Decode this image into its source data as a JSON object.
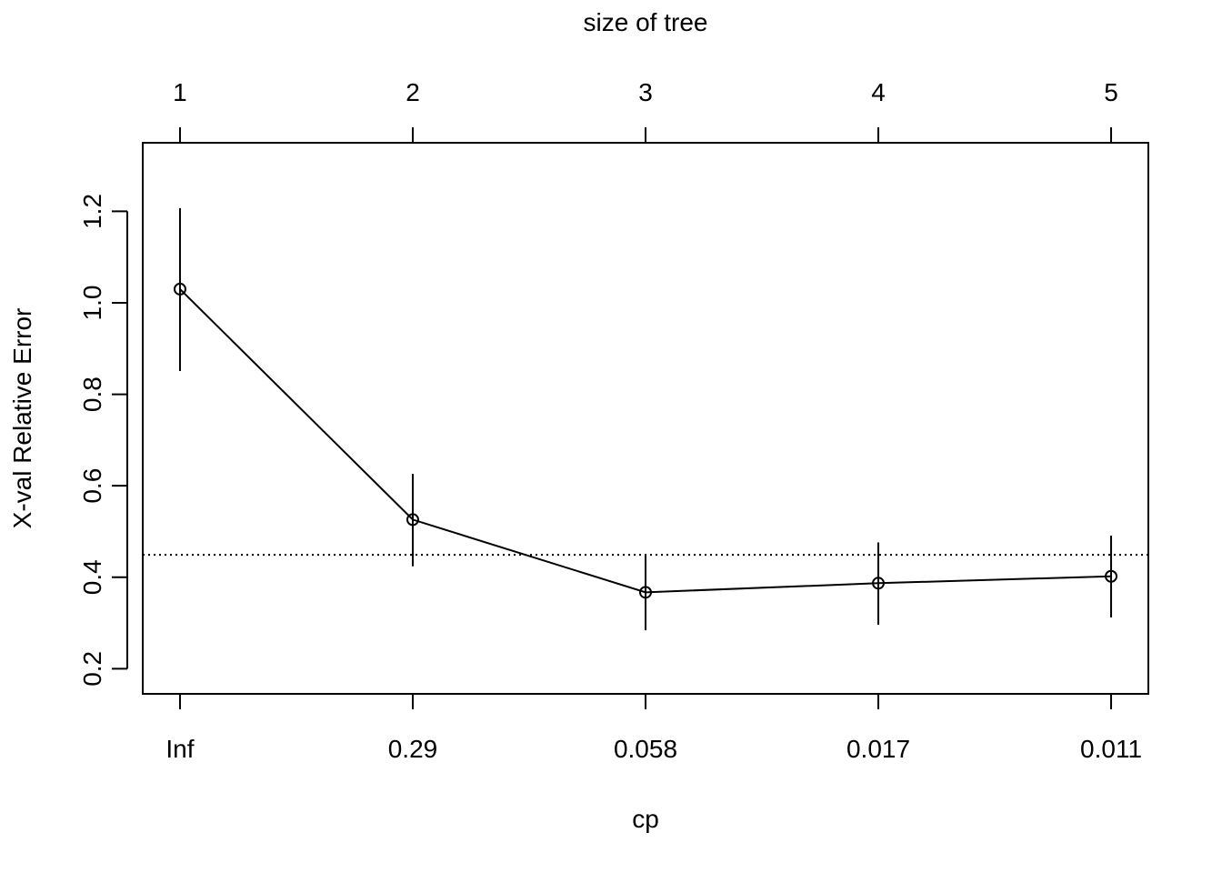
{
  "chart_data": {
    "type": "line",
    "top_axis_title": "size of tree",
    "xlabel": "cp",
    "ylabel": "X-val Relative Error",
    "top_tick_labels": [
      "1",
      "2",
      "3",
      "4",
      "5"
    ],
    "bottom_tick_labels": [
      "Inf",
      "0.29",
      "0.058",
      "0.017",
      "0.011"
    ],
    "y_tick_labels": [
      "0.2",
      "0.4",
      "0.6",
      "0.8",
      "1.0",
      "1.2"
    ],
    "y_ticks": [
      0.2,
      0.4,
      0.6,
      0.8,
      1.0,
      1.2
    ],
    "ylim": [
      0.145,
      1.35
    ],
    "xlim": [
      0.84,
      5.16
    ],
    "x": [
      1,
      2,
      3,
      4,
      5
    ],
    "values": [
      1.03,
      0.526,
      0.367,
      0.387,
      0.402
    ],
    "error_low": [
      0.851,
      0.424,
      0.284,
      0.296,
      0.312
    ],
    "error_high": [
      1.207,
      0.626,
      0.451,
      0.476,
      0.491
    ],
    "reference_line": 0.449,
    "grid": false
  }
}
